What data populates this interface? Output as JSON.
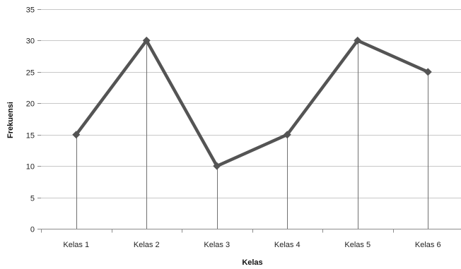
{
  "chart_data": {
    "type": "line",
    "title": "",
    "xlabel": "Kelas",
    "ylabel": "Frekuensi",
    "categories": [
      "Kelas 1",
      "Kelas 2",
      "Kelas 3",
      "Kelas 4",
      "Kelas 5",
      "Kelas 6"
    ],
    "series": [
      {
        "values": [
          15,
          30,
          10,
          15,
          30,
          25
        ],
        "color": "#545454"
      }
    ],
    "ylim": [
      0,
      35
    ],
    "yticks": [
      0,
      5,
      10,
      15,
      20,
      25,
      30,
      35
    ],
    "grid": true,
    "drop_lines": true,
    "legend": "none",
    "colors": {
      "line": "#545454",
      "grid": "#c8c8c8",
      "axis": "#8c8c8c",
      "drop_line": "#707070"
    }
  }
}
